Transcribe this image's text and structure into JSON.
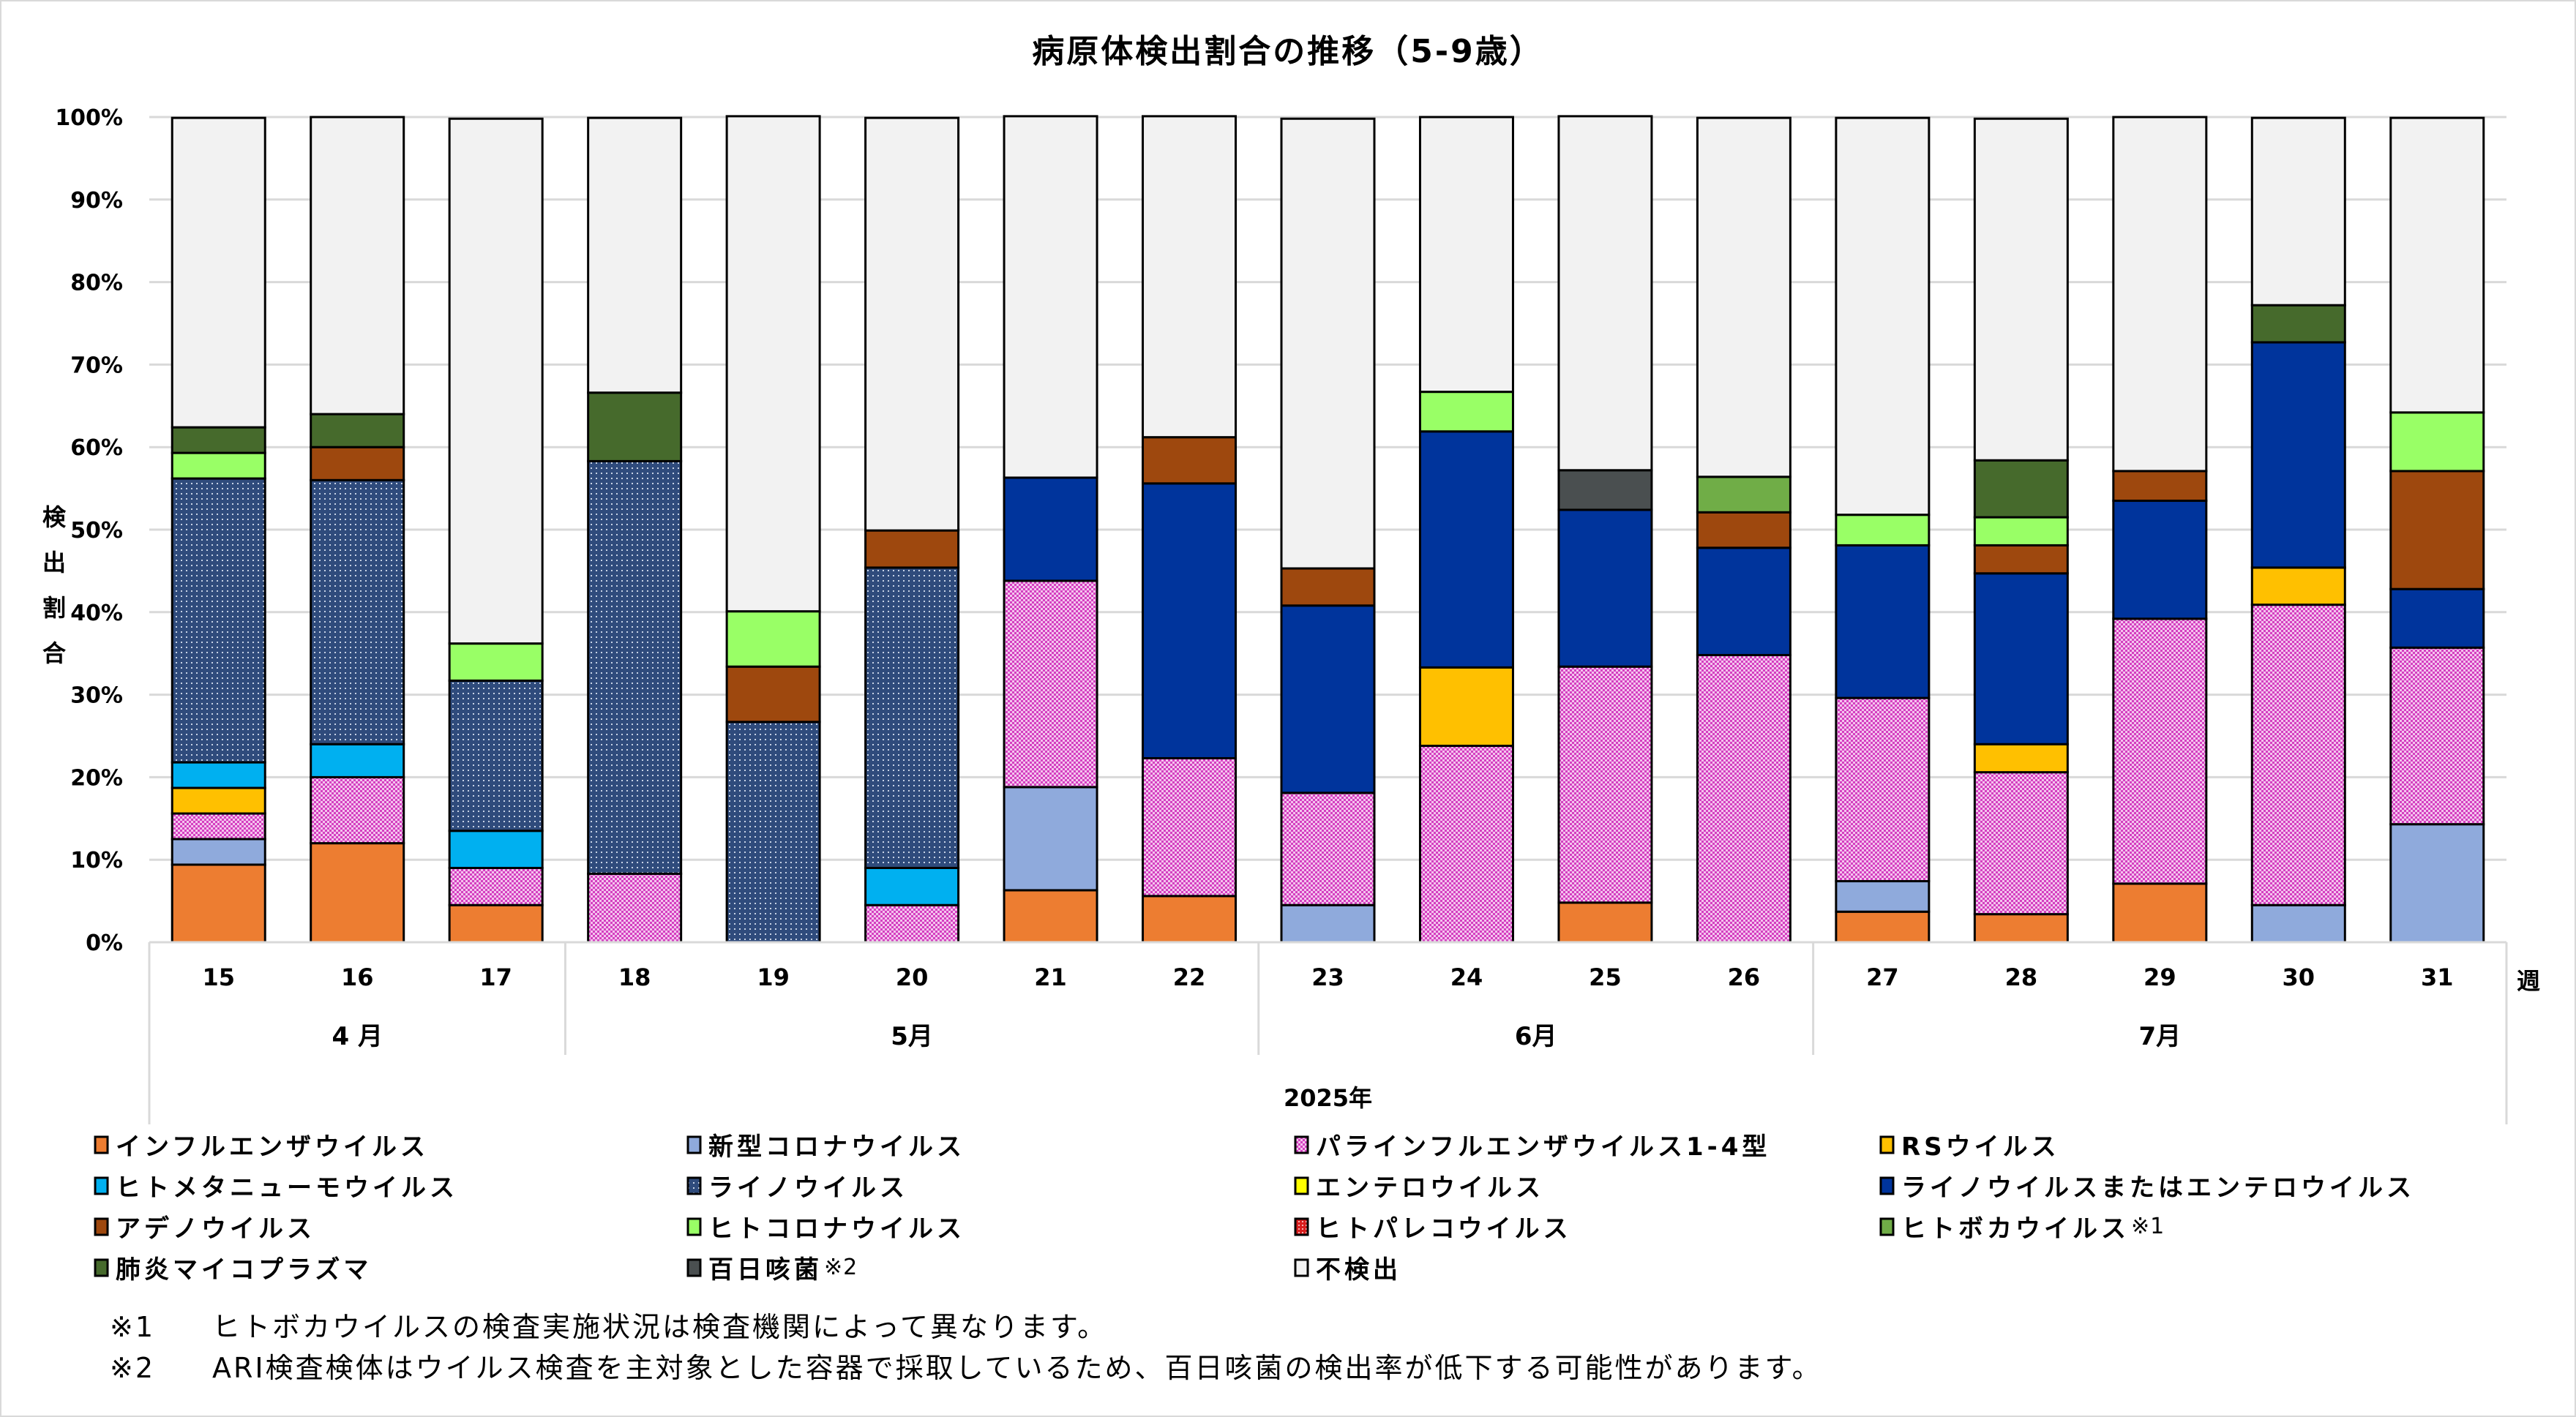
{
  "chart_data": {
    "type": "bar",
    "stacked": true,
    "title": "病原体検出割合の推移（5-9歳）",
    "ylabel": "検出割合",
    "xlabel_unit": "週",
    "year_label": "2025年",
    "ylim": [
      0,
      100
    ],
    "ytick_step": 10,
    "ytick_labels": [
      "0%",
      "10%",
      "20%",
      "30%",
      "40%",
      "50%",
      "60%",
      "70%",
      "80%",
      "90%",
      "100%"
    ],
    "grid": true,
    "legend_position": "bottom",
    "categories": [
      "15",
      "16",
      "17",
      "18",
      "19",
      "20",
      "21",
      "22",
      "23",
      "24",
      "25",
      "26",
      "27",
      "28",
      "29",
      "30",
      "31"
    ],
    "months": [
      {
        "label": "4 月",
        "weeks": 3
      },
      {
        "label": "5月",
        "weeks": 5
      },
      {
        "label": "6月",
        "weeks": 4
      },
      {
        "label": "7月",
        "weeks": 5
      }
    ],
    "series": [
      {
        "name": "インフルエンザウイルス",
        "color": "#ED7D31",
        "pattern": "solid",
        "values": [
          9.4,
          12.0,
          4.5,
          0,
          0,
          0,
          6.3,
          5.6,
          0,
          0,
          4.8,
          0,
          3.7,
          3.4,
          7.1,
          0,
          0
        ]
      },
      {
        "name": "新型コロナウイルス",
        "color": "#8FAADC",
        "pattern": "solid",
        "values": [
          3.1,
          0,
          0,
          0,
          0,
          0,
          12.5,
          0,
          4.5,
          0,
          0,
          0,
          3.7,
          0,
          0,
          4.5,
          14.3
        ]
      },
      {
        "name": "パラインフルエンザウイルス1-4型",
        "color": "#E58AD9",
        "pattern": "checker-pink",
        "values": [
          3.1,
          8.0,
          4.5,
          8.3,
          0,
          4.5,
          25.0,
          16.7,
          13.6,
          23.8,
          28.6,
          34.8,
          22.2,
          17.2,
          32.1,
          36.4,
          21.4
        ]
      },
      {
        "name": "RSウイルス",
        "color": "#FFC000",
        "pattern": "solid",
        "values": [
          3.1,
          0,
          0,
          0,
          0,
          0,
          0,
          0,
          0,
          9.5,
          0,
          0,
          0,
          3.4,
          0,
          4.5,
          0
        ]
      },
      {
        "name": "ヒトメタニューモウイルス",
        "color": "#00B0F0",
        "pattern": "solid",
        "values": [
          3.1,
          4.0,
          4.5,
          0,
          0,
          4.5,
          0,
          0,
          0,
          0,
          0,
          0,
          0,
          0,
          0,
          0,
          0
        ]
      },
      {
        "name": "ライノウイルス",
        "color": "#2F4B7C",
        "pattern": "dots-navy",
        "values": [
          34.4,
          32.0,
          18.2,
          50.0,
          26.7,
          36.4,
          0,
          0,
          0,
          0,
          0,
          0,
          0,
          0,
          0,
          0,
          0
        ]
      },
      {
        "name": "エンテロウイルス",
        "color": "#FFFF00",
        "pattern": "solid",
        "values": [
          0,
          0,
          0,
          0,
          0,
          0,
          0,
          0,
          0,
          0,
          0,
          0,
          0,
          0,
          0,
          0,
          0
        ]
      },
      {
        "name": "ライノウイルスまたはエンテロウイルス",
        "color": "#00349C",
        "pattern": "solid",
        "values": [
          0,
          0,
          0,
          0,
          0,
          0,
          12.5,
          33.3,
          22.7,
          28.6,
          19.0,
          13.0,
          18.5,
          20.7,
          14.3,
          27.3,
          7.1
        ]
      },
      {
        "name": "アデノウイルス",
        "color": "#9E480E",
        "pattern": "solid",
        "values": [
          0,
          4.0,
          0,
          0,
          6.7,
          4.5,
          0,
          5.6,
          4.5,
          0,
          0,
          4.3,
          0,
          3.4,
          3.6,
          0,
          14.3
        ]
      },
      {
        "name": "ヒトコロナウイルス",
        "color": "#99FF66",
        "pattern": "solid",
        "values": [
          3.1,
          0,
          4.5,
          0,
          6.7,
          0,
          0,
          0,
          0,
          4.8,
          0,
          0,
          3.7,
          3.4,
          0,
          0,
          7.1
        ]
      },
      {
        "name": "ヒトパレコウイルス",
        "color": "#E03C3C",
        "pattern": "dots-red",
        "values": [
          0,
          0,
          0,
          0,
          0,
          0,
          0,
          0,
          0,
          0,
          0,
          0,
          0,
          0,
          0,
          0,
          0
        ]
      },
      {
        "name": "ヒトボカウイルス",
        "note": "※1",
        "color": "#70AD47",
        "pattern": "solid",
        "values": [
          0,
          0,
          0,
          0,
          0,
          0,
          0,
          0,
          0,
          0,
          0,
          4.3,
          0,
          0,
          0,
          0,
          0
        ]
      },
      {
        "name": "肺炎マイコプラズマ",
        "color": "#466A2C",
        "pattern": "solid",
        "values": [
          3.1,
          4.0,
          0,
          8.3,
          0,
          0,
          0,
          0,
          0,
          0,
          0,
          0,
          0,
          6.9,
          0,
          4.5,
          0
        ]
      },
      {
        "name": "百日咳菌",
        "note": "※2",
        "color": "#4A4F50",
        "pattern": "solid",
        "values": [
          0,
          0,
          0,
          0,
          0,
          0,
          0,
          0,
          0,
          0,
          4.8,
          0,
          0,
          0,
          0,
          0,
          0
        ]
      },
      {
        "name": "不検出",
        "color": "#F2F2F2",
        "pattern": "solid",
        "values": [
          37.5,
          36.0,
          63.6,
          33.3,
          60.0,
          50.0,
          43.8,
          38.9,
          54.5,
          33.3,
          42.9,
          43.5,
          48.1,
          41.4,
          42.9,
          22.7,
          35.7
        ]
      }
    ]
  },
  "footnotes": [
    {
      "mark": "※1",
      "text": "ヒトボカウイルスの検査実施状況は検査機関によって異なります。"
    },
    {
      "mark": "※2",
      "text": "ARI検査検体はウイルス検査を主対象とした容器で採取しているため、百日咳菌の検出率が低下する可能性があります。"
    }
  ]
}
